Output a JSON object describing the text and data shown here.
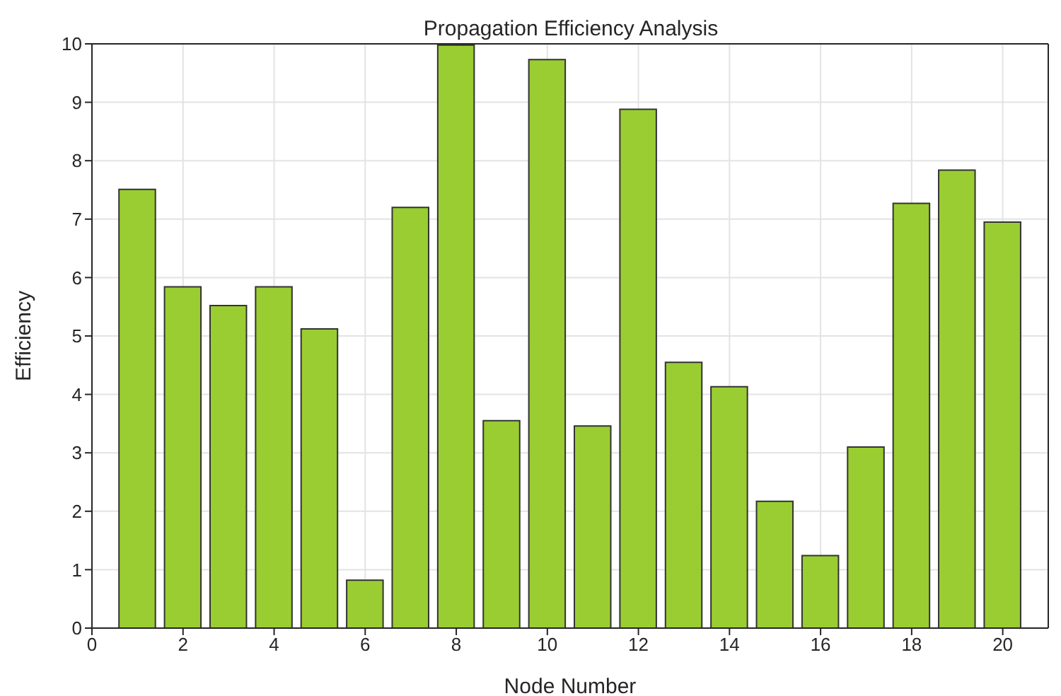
{
  "chart_data": {
    "type": "bar",
    "title": "Propagation Efficiency Analysis",
    "xlabel": "Node Number",
    "ylabel": "Efficiency",
    "x": [
      1,
      2,
      3,
      4,
      5,
      6,
      7,
      8,
      9,
      10,
      11,
      12,
      13,
      14,
      15,
      16,
      17,
      18,
      19,
      20
    ],
    "values": [
      7.51,
      5.84,
      5.52,
      5.84,
      5.12,
      0.82,
      7.2,
      9.98,
      3.55,
      9.73,
      3.46,
      8.88,
      4.55,
      4.13,
      2.17,
      1.24,
      3.1,
      7.27,
      7.84,
      6.95
    ],
    "color": "#9acd32",
    "xlim": [
      0,
      21
    ],
    "xticks": [
      0,
      2,
      4,
      6,
      8,
      10,
      12,
      14,
      16,
      18,
      20
    ],
    "ylim": [
      0,
      10
    ],
    "yticks": [
      0,
      1,
      2,
      3,
      4,
      5,
      6,
      7,
      8,
      9,
      10
    ],
    "grid": true
  }
}
